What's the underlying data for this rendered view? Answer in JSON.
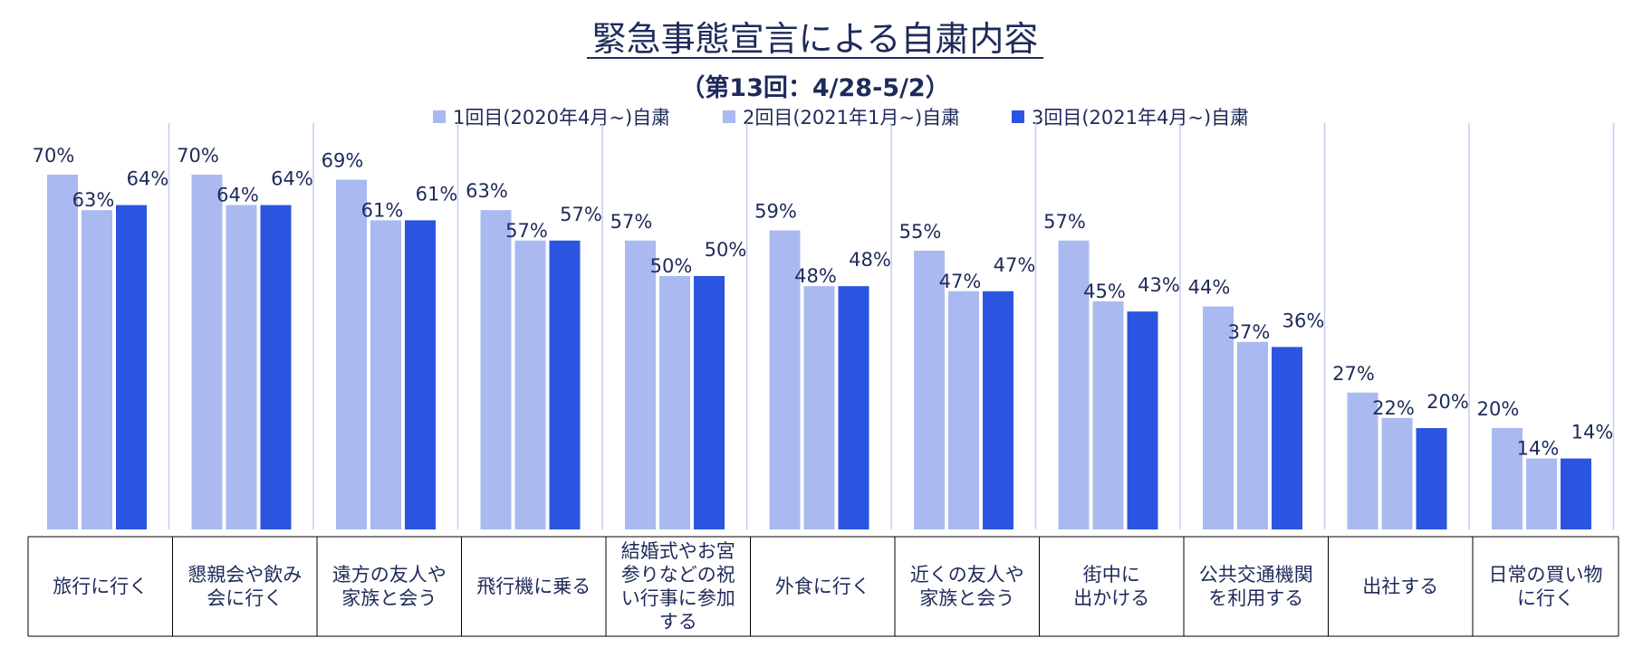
{
  "chart_data": {
    "type": "bar",
    "title": "緊急事態宣言による自粛内容",
    "subtitle": "（第13回：4/28-5/2）",
    "legend_position": "top",
    "ylim": [
      0,
      80
    ],
    "grid": false,
    "colors": [
      "#aab9f0",
      "#aab9f0",
      "#2b55e0"
    ],
    "categories": [
      [
        "旅行に行く"
      ],
      [
        "懇親会や飲み",
        "会に行く"
      ],
      [
        "遠方の友人や",
        "家族と会う"
      ],
      [
        "飛行機に乗る"
      ],
      [
        "結婚式やお宮",
        "参りなどの祝",
        "い行事に参加",
        "する"
      ],
      [
        "外食に行く"
      ],
      [
        "近くの友人や",
        "家族と会う"
      ],
      [
        "街中に",
        "出かける"
      ],
      [
        "公共交通機関",
        "を利用する"
      ],
      [
        "出社する"
      ],
      [
        "日常の買い物",
        "に行く"
      ]
    ],
    "series": [
      {
        "name": "1回目(2020年4月~)自粛",
        "values": [
          70,
          70,
          69,
          63,
          57,
          59,
          55,
          57,
          44,
          27,
          20
        ]
      },
      {
        "name": "2回目(2021年1月~)自粛",
        "values": [
          63,
          64,
          61,
          57,
          50,
          48,
          47,
          45,
          37,
          22,
          14
        ]
      },
      {
        "name": "3回目(2021年4月~)自粛",
        "values": [
          64,
          64,
          61,
          57,
          50,
          48,
          47,
          43,
          36,
          20,
          14
        ]
      }
    ],
    "value_suffix": "%"
  }
}
